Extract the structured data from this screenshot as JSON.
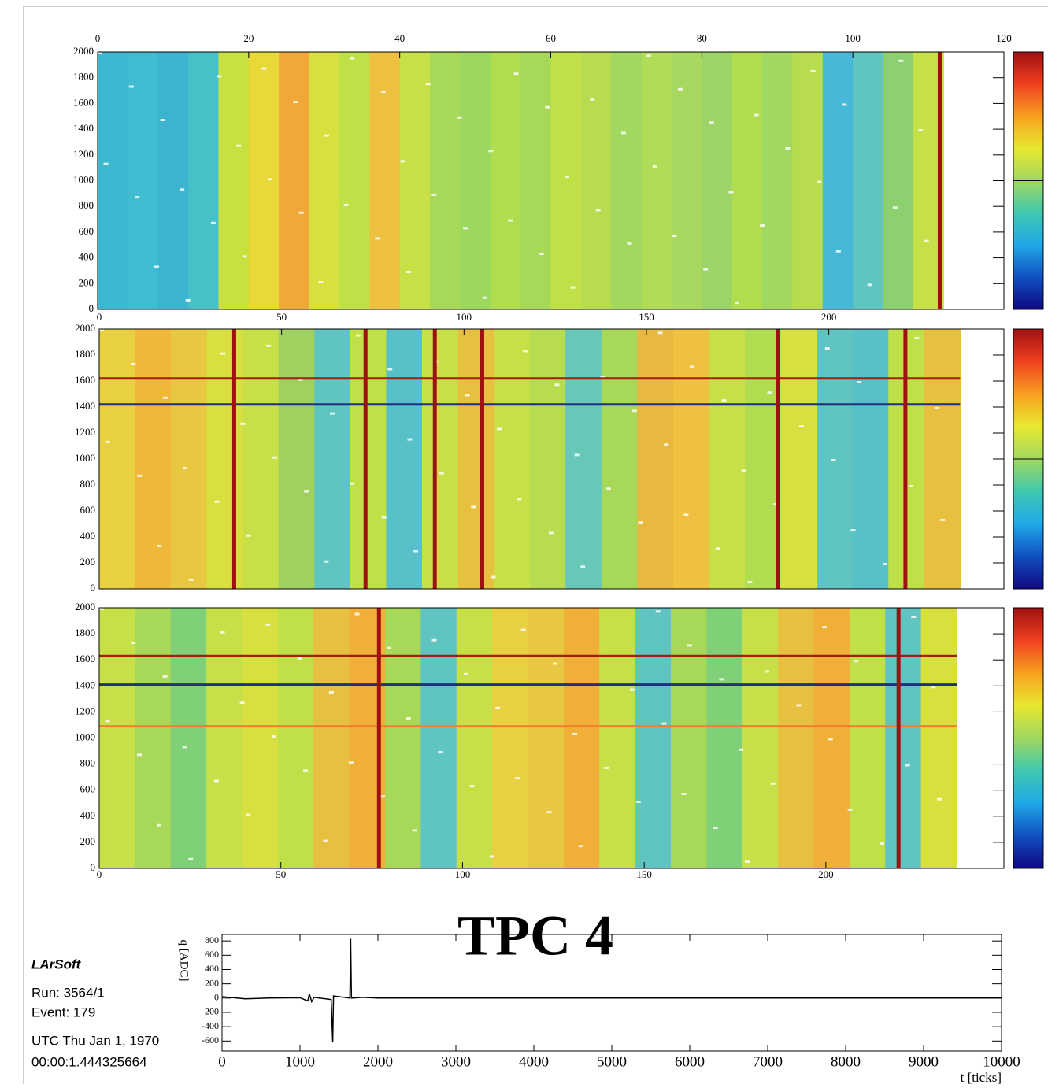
{
  "chart_data": [
    {
      "type": "heatmap",
      "xlim": [
        0,
        120
      ],
      "xticks": [
        0,
        20,
        40,
        60,
        80,
        100,
        120
      ],
      "ylim": [
        0,
        2000
      ],
      "yticks": [
        0,
        200,
        400,
        600,
        800,
        1000,
        1200,
        1400,
        1600,
        1800,
        2000
      ],
      "data_xmax": 112,
      "column_colors": [
        "#3cb8d0",
        "#40bcd0",
        "#3cb4d0",
        "#48c0c8",
        "#c8e040",
        "#e8d838",
        "#f0a838",
        "#d8e040",
        "#c0e048",
        "#eec040",
        "#c8e048",
        "#a8d858",
        "#9cd860",
        "#b0dc50",
        "#a8d858",
        "#c0e048",
        "#b8dc50",
        "#a0d860",
        "#b0dc58",
        "#a8d860",
        "#9cd468",
        "#b0dc50",
        "#a0d860",
        "#b8dc50",
        "#48b8d8",
        "#60c4c0",
        "#8cd070",
        "#c8e048"
      ],
      "vlines": [
        111.5
      ],
      "line_color": "#a01010",
      "hlines": [],
      "palette": [
        "#a01010",
        "#f04020",
        "#f8a020",
        "#e8e830",
        "#a0d860",
        "#40c8b0",
        "#20a8e8",
        "#1050c0",
        "#100880"
      ]
    },
    {
      "type": "heatmap",
      "xlim": [
        0,
        248
      ],
      "xticks": [
        0,
        50,
        100,
        150,
        200
      ],
      "ylim": [
        0,
        2000
      ],
      "yticks": [
        0,
        200,
        400,
        600,
        800,
        1000,
        1200,
        1400,
        1600,
        1800,
        2000
      ],
      "data_xmax": 236,
      "column_colors": [
        "#e8d040",
        "#f0b838",
        "#e8c840",
        "#d8e040",
        "#c8e048",
        "#a0d060",
        "#60c4c0",
        "#c0e048",
        "#58c0c8",
        "#c8e048",
        "#e8c040",
        "#c8e048",
        "#b8dc50",
        "#68c8b8",
        "#a8d858",
        "#e8b840",
        "#f0c040",
        "#c8e048",
        "#b0dc50",
        "#d8e040",
        "#60c4c0",
        "#58c0c8",
        "#c0e048",
        "#e8c040"
      ],
      "vlines": [
        37,
        73,
        92,
        105,
        186,
        221
      ],
      "line_color": "#a01010",
      "hlines": [
        {
          "y": 1620,
          "color": "#a02010"
        },
        {
          "y": 1420,
          "color": "#203080"
        }
      ],
      "palette": [
        "#a01010",
        "#f04020",
        "#f8a020",
        "#e8e830",
        "#a0d860",
        "#40c8b0",
        "#20a8e8",
        "#1050c0",
        "#100880"
      ]
    },
    {
      "type": "heatmap",
      "xlim": [
        0,
        249
      ],
      "xticks": [
        0,
        50,
        100,
        150,
        200
      ],
      "ylim": [
        0,
        2000
      ],
      "yticks": [
        0,
        200,
        400,
        600,
        800,
        1000,
        1200,
        1400,
        1600,
        1800,
        2000
      ],
      "data_xmax": 236,
      "column_colors": [
        "#c8e048",
        "#a8d858",
        "#80d078",
        "#c8e048",
        "#d8e040",
        "#c0e048",
        "#e8c040",
        "#f0b038",
        "#a8d858",
        "#60c4c0",
        "#c8e048",
        "#e8d040",
        "#e8c840",
        "#f0b038",
        "#c8e048",
        "#60c4c0",
        "#a8d858",
        "#80d078",
        "#c8e048",
        "#e8c040",
        "#f0b038",
        "#c0e048",
        "#60c4c0",
        "#d8e040"
      ],
      "vlines": [
        77,
        220
      ],
      "line_color": "#a01010",
      "hlines": [
        {
          "y": 1630,
          "color": "#a02010"
        },
        {
          "y": 1410,
          "color": "#203080"
        },
        {
          "y": 1090,
          "color": "#f08030"
        }
      ],
      "palette": [
        "#a01010",
        "#f04020",
        "#f8a020",
        "#e8e830",
        "#a0d860",
        "#40c8b0",
        "#20a8e8",
        "#1050c0",
        "#100880"
      ]
    },
    {
      "type": "line",
      "title": "TPC 4",
      "x_label": "t [ticks]",
      "y_label": "q [ADC]",
      "xlim": [
        0,
        10000
      ],
      "xticks": [
        0,
        1000,
        2000,
        3000,
        4000,
        5000,
        6000,
        7000,
        8000,
        9000,
        10000
      ],
      "ylim": [
        -740,
        890
      ],
      "yticks": [
        -600,
        -400,
        -200,
        0,
        200,
        400,
        600,
        800
      ],
      "x": [
        0,
        300,
        600,
        1000,
        1100,
        1120,
        1150,
        1180,
        1400,
        1420,
        1430,
        1500,
        1640,
        1650,
        1660,
        1800,
        2000,
        10000
      ],
      "values": [
        20,
        -10,
        0,
        5,
        -40,
        60,
        -50,
        10,
        -20,
        -620,
        30,
        20,
        0,
        830,
        0,
        10,
        0,
        0
      ],
      "color": "#000000"
    }
  ],
  "info_box": {
    "title": "LArSoft",
    "run": "Run:   3564/1",
    "event": "Event: 179",
    "date": "UTC Thu Jan 1, 1970",
    "time": "00:00:1.444325664"
  }
}
